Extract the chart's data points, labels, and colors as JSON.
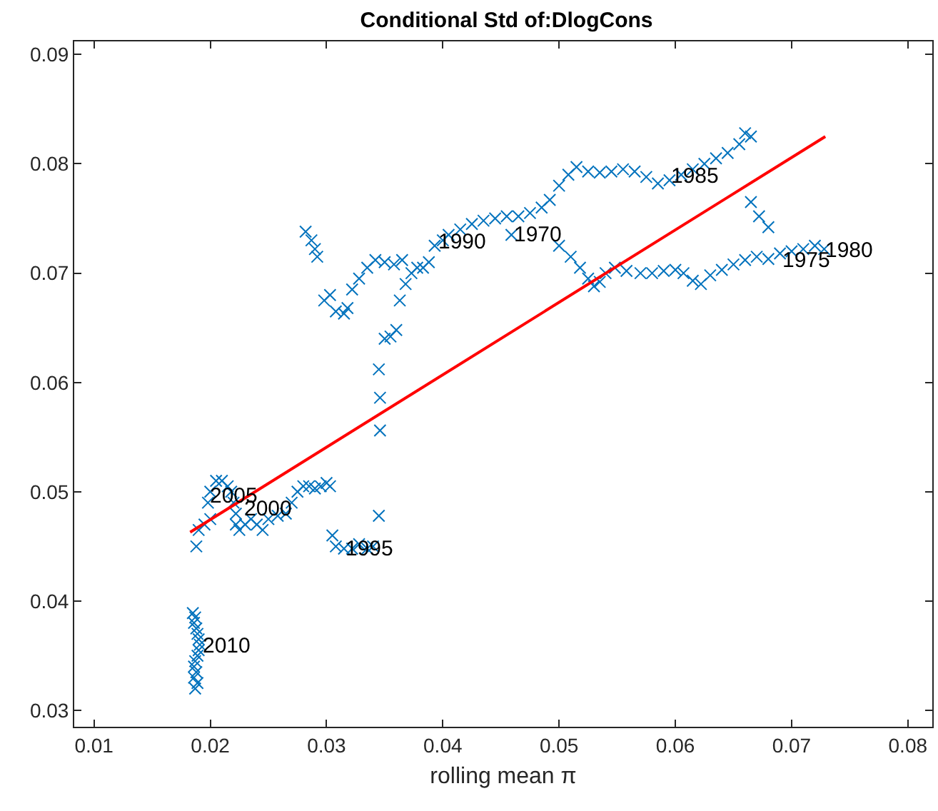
{
  "chart_data": {
    "type": "scatter",
    "title": "Conditional Std of:DlogCons",
    "xlabel": "rolling mean π",
    "marker": "cross",
    "grid": false,
    "xlim": [
      0.0083,
      0.0821
    ],
    "ylim": [
      0.0285,
      0.0912
    ],
    "xticks": [
      {
        "value": 0.01,
        "label": "0.01"
      },
      {
        "value": 0.02,
        "label": "0.02"
      },
      {
        "value": 0.03,
        "label": "0.03"
      },
      {
        "value": 0.04,
        "label": "0.04"
      },
      {
        "value": 0.05,
        "label": "0.05"
      },
      {
        "value": 0.06,
        "label": "0.06"
      },
      {
        "value": 0.07,
        "label": "0.07"
      },
      {
        "value": 0.08,
        "label": "0.08"
      }
    ],
    "yticks": [
      {
        "value": 0.03,
        "label": "0.03"
      },
      {
        "value": 0.04,
        "label": "0.04"
      },
      {
        "value": 0.05,
        "label": "0.05"
      },
      {
        "value": 0.06,
        "label": "0.06"
      },
      {
        "value": 0.07,
        "label": "0.07"
      },
      {
        "value": 0.08,
        "label": "0.08"
      },
      {
        "value": 0.09,
        "label": "0.09"
      }
    ],
    "series": [
      {
        "color": "#0072bd",
        "x": [
          0.0459,
          0.0185,
          0.0187,
          0.0186,
          0.0188,
          0.0189,
          0.019,
          0.0191,
          0.019,
          0.0189,
          0.0187,
          0.0186,
          0.0188,
          0.0186,
          0.0189,
          0.0187,
          0.0188,
          0.019,
          0.0195,
          0.02,
          0.0198,
          0.02,
          0.0205,
          0.021,
          0.0215,
          0.0218,
          0.022,
          0.0222,
          0.0222,
          0.0225,
          0.023,
          0.0235,
          0.024,
          0.0245,
          0.025,
          0.0258,
          0.0265,
          0.027,
          0.0275,
          0.028,
          0.0285,
          0.029,
          0.0295,
          0.03,
          0.0303,
          0.0305,
          0.0308,
          0.0315,
          0.0322,
          0.0328,
          0.0335,
          0.034,
          0.0345,
          0.0346,
          0.0346,
          0.0345,
          0.035,
          0.0355,
          0.036,
          0.0363,
          0.0368,
          0.0373,
          0.0378,
          0.0383,
          0.0388,
          0.0393,
          0.04,
          0.0282,
          0.0287,
          0.029,
          0.0292,
          0.0298,
          0.0303,
          0.0308,
          0.0315,
          0.0318,
          0.0322,
          0.0328,
          0.0335,
          0.0342,
          0.035,
          0.0358,
          0.0365,
          0.0405,
          0.0415,
          0.0425,
          0.0435,
          0.0445,
          0.0455,
          0.0465,
          0.0475,
          0.0485,
          0.0492,
          0.05,
          0.0508,
          0.0515,
          0.0525,
          0.0535,
          0.0545,
          0.0555,
          0.0565,
          0.0575,
          0.0585,
          0.0595,
          0.0605,
          0.0615,
          0.0625,
          0.0635,
          0.0645,
          0.0655,
          0.066,
          0.0665,
          0.05,
          0.051,
          0.0518,
          0.0525,
          0.053,
          0.0535,
          0.054,
          0.0548,
          0.0558,
          0.057,
          0.058,
          0.059,
          0.06,
          0.0607,
          0.0615,
          0.0622,
          0.063,
          0.064,
          0.065,
          0.066,
          0.067,
          0.068,
          0.069,
          0.07,
          0.071,
          0.072,
          0.0728,
          0.0665,
          0.0672,
          0.068
        ],
        "values": [
          0.0735,
          0.0389,
          0.0385,
          0.038,
          0.0375,
          0.037,
          0.0365,
          0.036,
          0.0355,
          0.035,
          0.0345,
          0.034,
          0.0335,
          0.033,
          0.0325,
          0.032,
          0.045,
          0.0465,
          0.047,
          0.0475,
          0.049,
          0.05,
          0.051,
          0.051,
          0.0505,
          0.05,
          0.049,
          0.048,
          0.047,
          0.0465,
          0.047,
          0.0475,
          0.047,
          0.0465,
          0.0475,
          0.0478,
          0.048,
          0.049,
          0.05,
          0.0505,
          0.0505,
          0.0503,
          0.0505,
          0.0508,
          0.0505,
          0.046,
          0.045,
          0.0448,
          0.0448,
          0.0452,
          0.0448,
          0.045,
          0.0478,
          0.0556,
          0.0586,
          0.0612,
          0.064,
          0.0642,
          0.0648,
          0.0675,
          0.069,
          0.07,
          0.0705,
          0.0705,
          0.071,
          0.0725,
          0.073,
          0.0738,
          0.073,
          0.0722,
          0.0715,
          0.0675,
          0.068,
          0.0665,
          0.0663,
          0.0668,
          0.0685,
          0.0695,
          0.0705,
          0.0712,
          0.071,
          0.0708,
          0.0712,
          0.0735,
          0.074,
          0.0745,
          0.0748,
          0.075,
          0.0752,
          0.0752,
          0.0755,
          0.076,
          0.0767,
          0.078,
          0.079,
          0.0797,
          0.0793,
          0.0792,
          0.0793,
          0.0795,
          0.0793,
          0.0788,
          0.0782,
          0.0785,
          0.079,
          0.0795,
          0.08,
          0.0805,
          0.081,
          0.0818,
          0.0828,
          0.0825,
          0.0725,
          0.0715,
          0.0705,
          0.0695,
          0.0688,
          0.0692,
          0.07,
          0.0705,
          0.0702,
          0.07,
          0.07,
          0.0702,
          0.0703,
          0.07,
          0.0693,
          0.069,
          0.0698,
          0.0703,
          0.0708,
          0.0712,
          0.0715,
          0.0713,
          0.0718,
          0.072,
          0.0722,
          0.0725,
          0.0722,
          0.0765,
          0.0752,
          0.0742
        ]
      },
      {
        "type": "line",
        "color": "#ff0000",
        "marker": "none",
        "line_style": "solid",
        "x": [
          0.01827,
          0.0729
        ],
        "values": [
          0.0463,
          0.0825
        ]
      }
    ],
    "annotations": [
      {
        "text": "2010",
        "x": 0.0191,
        "y": 0.0359
      },
      {
        "text": "2005",
        "x": 0.0197,
        "y": 0.0496
      },
      {
        "text": "2000",
        "x": 0.0227,
        "y": 0.0484
      },
      {
        "text": "1995",
        "x": 0.0314,
        "y": 0.0447
      },
      {
        "text": "1990",
        "x": 0.0394,
        "y": 0.0728
      },
      {
        "text": "1970",
        "x": 0.0459,
        "y": 0.0735
      },
      {
        "text": "1985",
        "x": 0.0594,
        "y": 0.0789
      },
      {
        "text": "1975",
        "x": 0.0689,
        "y": 0.0711
      },
      {
        "text": "1980",
        "x": 0.0726,
        "y": 0.072
      }
    ]
  }
}
